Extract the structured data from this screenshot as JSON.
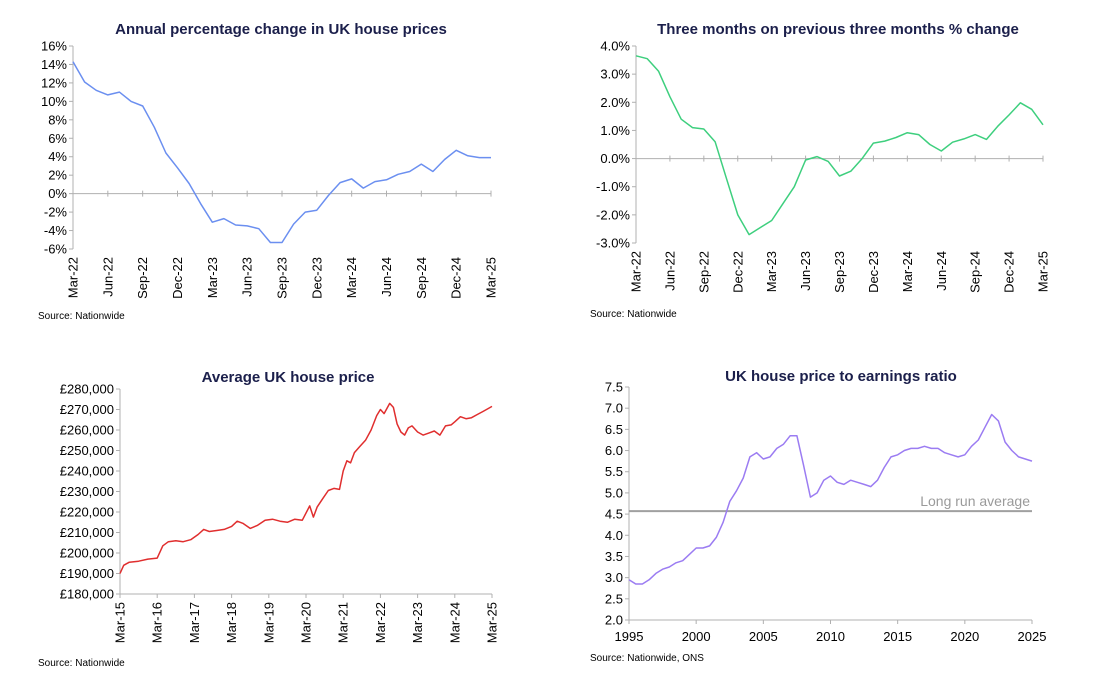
{
  "chart_data": [
    {
      "type": "line",
      "title": "Annual percentage change in UK house prices",
      "source": "Source: Nationwide",
      "color": "#6b8ff0",
      "ylim": [
        -6,
        16
      ],
      "yticks": [
        -6,
        -4,
        -2,
        0,
        2,
        4,
        6,
        8,
        10,
        12,
        14,
        16
      ],
      "ytick_labels": [
        "-6%",
        "-4%",
        "-2%",
        "0%",
        "2%",
        "4%",
        "6%",
        "8%",
        "10%",
        "12%",
        "14%",
        "16%"
      ],
      "xlabels": [
        "Mar-22",
        "Jun-22",
        "Sep-22",
        "Dec-22",
        "Mar-23",
        "Jun-23",
        "Sep-23",
        "Dec-23",
        "Mar-24",
        "Jun-24",
        "Sep-24",
        "Dec-24",
        "Mar-25"
      ],
      "categories": [
        "Mar-22",
        "Apr-22",
        "May-22",
        "Jun-22",
        "Jul-22",
        "Aug-22",
        "Sep-22",
        "Oct-22",
        "Nov-22",
        "Dec-22",
        "Jan-23",
        "Feb-23",
        "Mar-23",
        "Apr-23",
        "May-23",
        "Jun-23",
        "Jul-23",
        "Aug-23",
        "Sep-23",
        "Oct-23",
        "Nov-23",
        "Dec-23",
        "Jan-24",
        "Feb-24",
        "Mar-24",
        "Apr-24",
        "May-24",
        "Jun-24",
        "Jul-24",
        "Aug-24",
        "Sep-24",
        "Oct-24",
        "Nov-24",
        "Dec-24",
        "Jan-25",
        "Feb-25",
        "Mar-25"
      ],
      "values": [
        14.3,
        12.1,
        11.2,
        10.7,
        11.0,
        10.0,
        9.5,
        7.2,
        4.4,
        2.8,
        1.1,
        -1.1,
        -3.1,
        -2.7,
        -3.4,
        -3.5,
        -3.8,
        -5.3,
        -5.3,
        -3.3,
        -2.0,
        -1.8,
        -0.2,
        1.2,
        1.6,
        0.6,
        1.3,
        1.5,
        2.1,
        2.4,
        3.2,
        2.4,
        3.7,
        4.7,
        4.1,
        3.9,
        3.9
      ]
    },
    {
      "type": "line",
      "title": "Three months on previous three months % change",
      "source": "Source: Nationwide",
      "color": "#3ecf7e",
      "ylim": [
        -3,
        4
      ],
      "yticks": [
        -3,
        -2,
        -1,
        0,
        1,
        2,
        3,
        4
      ],
      "ytick_labels": [
        "-3.0%",
        "-2.0%",
        "-1.0%",
        "0.0%",
        "1.0%",
        "2.0%",
        "3.0%",
        "4.0%"
      ],
      "xlabels": [
        "Mar-22",
        "Jun-22",
        "Sep-22",
        "Dec-22",
        "Mar-23",
        "Jun-23",
        "Sep-23",
        "Dec-23",
        "Mar-24",
        "Jun-24",
        "Sep-24",
        "Dec-24",
        "Mar-25"
      ],
      "categories": [
        "Mar-22",
        "Apr-22",
        "May-22",
        "Jun-22",
        "Jul-22",
        "Aug-22",
        "Sep-22",
        "Oct-22",
        "Nov-22",
        "Dec-22",
        "Jan-23",
        "Feb-23",
        "Mar-23",
        "Apr-23",
        "May-23",
        "Jun-23",
        "Jul-23",
        "Aug-23",
        "Sep-23",
        "Oct-23",
        "Nov-23",
        "Dec-23",
        "Jan-24",
        "Feb-24",
        "Mar-24",
        "Apr-24",
        "May-24",
        "Jun-24",
        "Jul-24",
        "Aug-24",
        "Sep-24",
        "Oct-24",
        "Nov-24",
        "Dec-24",
        "Jan-25",
        "Feb-25",
        "Mar-25"
      ],
      "values": [
        3.65,
        3.55,
        3.1,
        2.2,
        1.4,
        1.1,
        1.05,
        0.6,
        -0.7,
        -2.0,
        -2.7,
        -2.45,
        -2.2,
        -1.6,
        -1.0,
        -0.05,
        0.07,
        -0.1,
        -0.62,
        -0.45,
        0.0,
        0.55,
        0.62,
        0.75,
        0.92,
        0.85,
        0.5,
        0.27,
        0.58,
        0.7,
        0.85,
        0.68,
        1.15,
        1.55,
        1.98,
        1.75,
        1.2
      ]
    },
    {
      "type": "line",
      "title": "Average UK house price",
      "source": "Source: Nationwide",
      "color": "#e02e2e",
      "ylim": [
        180000,
        280000
      ],
      "yticks": [
        180000,
        190000,
        200000,
        210000,
        220000,
        230000,
        240000,
        250000,
        260000,
        270000,
        280000
      ],
      "ytick_labels": [
        "£180,000",
        "£190,000",
        "£200,000",
        "£210,000",
        "£220,000",
        "£230,000",
        "£240,000",
        "£250,000",
        "£260,000",
        "£270,000",
        "£280,000"
      ],
      "xlabels": [
        "Mar-15",
        "Mar-16",
        "Mar-17",
        "Mar-18",
        "Mar-19",
        "Mar-20",
        "Mar-21",
        "Mar-22",
        "Mar-23",
        "Mar-24",
        "Mar-25"
      ],
      "x": [
        2015.0,
        2015.1,
        2015.25,
        2015.5,
        2015.75,
        2016.0,
        2016.15,
        2016.3,
        2016.5,
        2016.7,
        2016.9,
        2017.1,
        2017.25,
        2017.4,
        2017.6,
        2017.8,
        2018.0,
        2018.15,
        2018.3,
        2018.5,
        2018.7,
        2018.9,
        2019.1,
        2019.3,
        2019.5,
        2019.7,
        2019.9,
        2020.1,
        2020.2,
        2020.3,
        2020.45,
        2020.6,
        2020.75,
        2020.9,
        2021.0,
        2021.1,
        2021.2,
        2021.3,
        2021.45,
        2021.6,
        2021.75,
        2021.9,
        2022.0,
        2022.1,
        2022.25,
        2022.35,
        2022.45,
        2022.55,
        2022.65,
        2022.75,
        2022.85,
        2023.0,
        2023.15,
        2023.3,
        2023.45,
        2023.6,
        2023.75,
        2023.9,
        2024.0,
        2024.15,
        2024.3,
        2024.45,
        2024.6,
        2024.75,
        2024.9,
        2025.0
      ],
      "values": [
        190000,
        194000,
        195500,
        196000,
        197000,
        197500,
        203500,
        205500,
        206000,
        205500,
        206500,
        209000,
        211500,
        210500,
        211000,
        211500,
        213000,
        215500,
        214500,
        212000,
        213500,
        216000,
        216500,
        215500,
        215000,
        216500,
        216000,
        223000,
        217500,
        222500,
        226500,
        230500,
        231500,
        231000,
        240000,
        245000,
        244000,
        249000,
        252000,
        255000,
        260000,
        267000,
        270000,
        268000,
        273000,
        271000,
        263000,
        259000,
        257500,
        261000,
        262000,
        259000,
        257500,
        258500,
        259500,
        257500,
        262000,
        262500,
        264000,
        266500,
        265500,
        266000,
        267500,
        269000,
        270500,
        271500
      ]
    },
    {
      "type": "line",
      "title": "UK house price to earnings ratio",
      "source": "Source: Nationwide, ONS",
      "color": "#9b7cf2",
      "reference_color": "#a0a0a0",
      "ylim": [
        2.0,
        7.5
      ],
      "yticks": [
        2.0,
        2.5,
        3.0,
        3.5,
        4.0,
        4.5,
        5.0,
        5.5,
        6.0,
        6.5,
        7.0,
        7.5
      ],
      "ytick_labels": [
        "2.0",
        "2.5",
        "3.0",
        "3.5",
        "4.0",
        "4.5",
        "5.0",
        "5.5",
        "6.0",
        "6.5",
        "7.0",
        "7.5"
      ],
      "xlim": [
        1995,
        2025
      ],
      "xticks": [
        1995,
        2000,
        2005,
        2010,
        2015,
        2020,
        2025
      ],
      "xtick_labels": [
        "1995",
        "2000",
        "2005",
        "2010",
        "2015",
        "2020",
        "2025"
      ],
      "reference": {
        "label": "Long run average",
        "value": 4.57
      },
      "x": [
        1995.0,
        1995.5,
        1996.0,
        1996.5,
        1997.0,
        1997.5,
        1998.0,
        1998.5,
        1999.0,
        1999.5,
        2000.0,
        2000.5,
        2001.0,
        2001.5,
        2002.0,
        2002.5,
        2003.0,
        2003.5,
        2004.0,
        2004.5,
        2005.0,
        2005.5,
        2006.0,
        2006.5,
        2007.0,
        2007.5,
        2008.0,
        2008.5,
        2009.0,
        2009.5,
        2010.0,
        2010.5,
        2011.0,
        2011.5,
        2012.0,
        2012.5,
        2013.0,
        2013.5,
        2014.0,
        2014.5,
        2015.0,
        2015.5,
        2016.0,
        2016.5,
        2017.0,
        2017.5,
        2018.0,
        2018.5,
        2019.0,
        2019.5,
        2020.0,
        2020.5,
        2021.0,
        2021.5,
        2022.0,
        2022.5,
        2023.0,
        2023.5,
        2024.0,
        2024.5,
        2025.0
      ],
      "values": [
        2.95,
        2.85,
        2.85,
        2.95,
        3.1,
        3.2,
        3.25,
        3.35,
        3.4,
        3.55,
        3.7,
        3.7,
        3.75,
        3.95,
        4.3,
        4.8,
        5.05,
        5.35,
        5.85,
        5.95,
        5.8,
        5.85,
        6.05,
        6.15,
        6.35,
        6.35,
        5.65,
        4.9,
        5.0,
        5.3,
        5.4,
        5.25,
        5.2,
        5.3,
        5.25,
        5.2,
        5.15,
        5.3,
        5.6,
        5.85,
        5.9,
        6.0,
        6.05,
        6.05,
        6.1,
        6.05,
        6.05,
        5.95,
        5.9,
        5.85,
        5.9,
        6.1,
        6.25,
        6.55,
        6.85,
        6.7,
        6.2,
        6.0,
        5.85,
        5.8,
        5.75
      ]
    }
  ]
}
